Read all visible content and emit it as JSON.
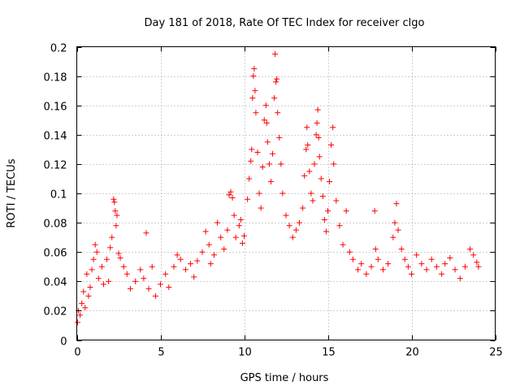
{
  "chart_data": {
    "type": "scatter",
    "title": "Day 181 of 2018, Rate Of TEC Index for receiver clgo",
    "xlabel": "GPS time / hours",
    "ylabel": "ROTI / TECUs",
    "xlim": [
      0,
      25
    ],
    "ylim": [
      0,
      0.2
    ],
    "xticks": [
      0,
      5,
      10,
      15,
      20,
      25
    ],
    "xtick_labels": [
      "0",
      "5",
      "10",
      "15",
      "20",
      "25"
    ],
    "yticks": [
      0,
      0.02,
      0.04,
      0.06,
      0.08,
      0.1,
      0.12,
      0.14,
      0.16,
      0.18,
      0.2
    ],
    "ytick_labels": [
      "0",
      "0.02",
      "0.04",
      "0.06",
      "0.08",
      "0.1",
      "0.12",
      "0.14",
      "0.16",
      "0.18",
      "0.2"
    ],
    "grid": true,
    "marker": "plus",
    "color": "#ff0000",
    "series": [
      {
        "name": "ROTI",
        "points": [
          [
            0.05,
            0.012
          ],
          [
            0.1,
            0.02
          ],
          [
            0.2,
            0.017
          ],
          [
            0.3,
            0.025
          ],
          [
            0.4,
            0.033
          ],
          [
            0.5,
            0.022
          ],
          [
            0.6,
            0.045
          ],
          [
            0.7,
            0.03
          ],
          [
            0.8,
            0.036
          ],
          [
            0.9,
            0.048
          ],
          [
            1.0,
            0.055
          ],
          [
            1.1,
            0.065
          ],
          [
            1.2,
            0.06
          ],
          [
            1.3,
            0.042
          ],
          [
            1.5,
            0.05
          ],
          [
            1.6,
            0.038
          ],
          [
            1.8,
            0.055
          ],
          [
            1.9,
            0.04
          ],
          [
            2.0,
            0.063
          ],
          [
            2.1,
            0.07
          ],
          [
            2.2,
            0.096
          ],
          [
            2.25,
            0.094
          ],
          [
            2.3,
            0.088
          ],
          [
            2.35,
            0.078
          ],
          [
            2.4,
            0.085
          ],
          [
            2.5,
            0.059
          ],
          [
            2.6,
            0.056
          ],
          [
            2.8,
            0.05
          ],
          [
            3.0,
            0.045
          ],
          [
            3.2,
            0.035
          ],
          [
            3.5,
            0.04
          ],
          [
            3.8,
            0.048
          ],
          [
            4.0,
            0.042
          ],
          [
            4.15,
            0.073
          ],
          [
            4.3,
            0.035
          ],
          [
            4.5,
            0.05
          ],
          [
            4.7,
            0.03
          ],
          [
            5.0,
            0.038
          ],
          [
            5.3,
            0.045
          ],
          [
            5.5,
            0.036
          ],
          [
            5.8,
            0.05
          ],
          [
            6.0,
            0.058
          ],
          [
            6.2,
            0.055
          ],
          [
            6.5,
            0.048
          ],
          [
            6.8,
            0.052
          ],
          [
            7.0,
            0.043
          ],
          [
            7.2,
            0.054
          ],
          [
            7.5,
            0.06
          ],
          [
            7.7,
            0.074
          ],
          [
            7.9,
            0.065
          ],
          [
            8.0,
            0.052
          ],
          [
            8.2,
            0.058
          ],
          [
            8.4,
            0.08
          ],
          [
            8.6,
            0.07
          ],
          [
            8.8,
            0.062
          ],
          [
            9.0,
            0.075
          ],
          [
            9.1,
            0.099
          ],
          [
            9.2,
            0.101
          ],
          [
            9.3,
            0.097
          ],
          [
            9.4,
            0.085
          ],
          [
            9.5,
            0.07
          ],
          [
            9.7,
            0.078
          ],
          [
            9.8,
            0.082
          ],
          [
            9.9,
            0.066
          ],
          [
            10.0,
            0.071
          ],
          [
            10.2,
            0.096
          ],
          [
            10.3,
            0.11
          ],
          [
            10.4,
            0.122
          ],
          [
            10.45,
            0.13
          ],
          [
            10.5,
            0.165
          ],
          [
            10.55,
            0.18
          ],
          [
            10.6,
            0.185
          ],
          [
            10.65,
            0.17
          ],
          [
            10.7,
            0.155
          ],
          [
            10.8,
            0.128
          ],
          [
            10.9,
            0.1
          ],
          [
            11.0,
            0.09
          ],
          [
            11.1,
            0.118
          ],
          [
            11.2,
            0.15
          ],
          [
            11.3,
            0.16
          ],
          [
            11.35,
            0.148
          ],
          [
            11.4,
            0.135
          ],
          [
            11.5,
            0.12
          ],
          [
            11.6,
            0.108
          ],
          [
            11.7,
            0.127
          ],
          [
            11.8,
            0.165
          ],
          [
            11.85,
            0.195
          ],
          [
            11.9,
            0.176
          ],
          [
            11.95,
            0.178
          ],
          [
            12.0,
            0.155
          ],
          [
            12.1,
            0.138
          ],
          [
            12.2,
            0.12
          ],
          [
            12.3,
            0.1
          ],
          [
            12.5,
            0.085
          ],
          [
            12.7,
            0.078
          ],
          [
            12.9,
            0.07
          ],
          [
            13.1,
            0.075
          ],
          [
            13.3,
            0.08
          ],
          [
            13.5,
            0.09
          ],
          [
            13.6,
            0.112
          ],
          [
            13.7,
            0.13
          ],
          [
            13.75,
            0.145
          ],
          [
            13.8,
            0.133
          ],
          [
            13.9,
            0.115
          ],
          [
            14.0,
            0.1
          ],
          [
            14.1,
            0.095
          ],
          [
            14.2,
            0.12
          ],
          [
            14.3,
            0.14
          ],
          [
            14.35,
            0.148
          ],
          [
            14.4,
            0.157
          ],
          [
            14.45,
            0.138
          ],
          [
            14.5,
            0.125
          ],
          [
            14.6,
            0.11
          ],
          [
            14.7,
            0.098
          ],
          [
            14.8,
            0.082
          ],
          [
            14.9,
            0.074
          ],
          [
            15.0,
            0.088
          ],
          [
            15.1,
            0.108
          ],
          [
            15.2,
            0.133
          ],
          [
            15.3,
            0.145
          ],
          [
            15.35,
            0.12
          ],
          [
            15.5,
            0.095
          ],
          [
            15.7,
            0.078
          ],
          [
            15.9,
            0.065
          ],
          [
            16.1,
            0.088
          ],
          [
            16.3,
            0.06
          ],
          [
            16.5,
            0.055
          ],
          [
            16.8,
            0.048
          ],
          [
            17.0,
            0.052
          ],
          [
            17.3,
            0.045
          ],
          [
            17.6,
            0.05
          ],
          [
            17.8,
            0.088
          ],
          [
            17.85,
            0.062
          ],
          [
            18.0,
            0.055
          ],
          [
            18.3,
            0.048
          ],
          [
            18.6,
            0.052
          ],
          [
            18.9,
            0.07
          ],
          [
            19.0,
            0.08
          ],
          [
            19.1,
            0.093
          ],
          [
            19.2,
            0.075
          ],
          [
            19.4,
            0.062
          ],
          [
            19.6,
            0.055
          ],
          [
            19.8,
            0.05
          ],
          [
            20.0,
            0.045
          ],
          [
            20.3,
            0.058
          ],
          [
            20.6,
            0.052
          ],
          [
            20.9,
            0.048
          ],
          [
            21.2,
            0.055
          ],
          [
            21.5,
            0.05
          ],
          [
            21.8,
            0.045
          ],
          [
            22.0,
            0.052
          ],
          [
            22.3,
            0.056
          ],
          [
            22.6,
            0.048
          ],
          [
            22.9,
            0.042
          ],
          [
            23.2,
            0.05
          ],
          [
            23.5,
            0.062
          ],
          [
            23.7,
            0.058
          ],
          [
            23.9,
            0.053
          ],
          [
            24.0,
            0.05
          ]
        ]
      }
    ]
  }
}
